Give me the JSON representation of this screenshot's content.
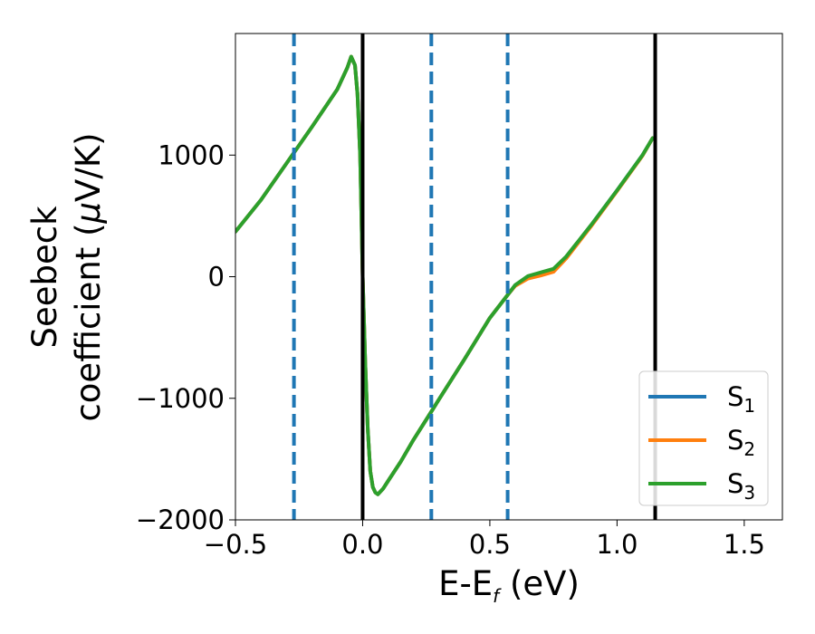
{
  "chart_data": {
    "type": "line",
    "xlabel": "E-E",
    "xlabel_sub": "f",
    "xlabel_unit": " (eV)",
    "ylabel_line1": "Seebeck",
    "ylabel_line2_prefix": "coefficient  (",
    "ylabel_mu": "μ",
    "ylabel_line2_suffix": "V/K)",
    "xlim": [
      -0.5,
      1.65
    ],
    "ylim": [
      -2000,
      2000
    ],
    "xticks": [
      -0.5,
      0.0,
      0.5,
      1.0,
      1.5
    ],
    "xtick_labels": [
      "−0.5",
      "0.0",
      "0.5",
      "1.0",
      "1.5"
    ],
    "yticks": [
      -2000,
      -1000,
      0,
      1000
    ],
    "ytick_labels": [
      "−2000",
      "−1000",
      "0",
      "1000"
    ],
    "grid": false,
    "legend_position": "bottom-right",
    "vlines_solid": [
      0.0,
      1.15
    ],
    "vlines_dashed": [
      -0.27,
      0.27,
      0.57
    ],
    "colors": {
      "S1": "#1f77b4",
      "S2": "#ff7f0e",
      "S3": "#2ca02c",
      "solid_vline": "#000000",
      "dashed_vline": "#1f77b4"
    },
    "x": [
      -0.5,
      -0.4,
      -0.3,
      -0.2,
      -0.1,
      -0.06,
      -0.045,
      -0.03,
      -0.02,
      -0.01,
      0.0,
      0.01,
      0.02,
      0.03,
      0.04,
      0.05,
      0.06,
      0.08,
      0.1,
      0.15,
      0.2,
      0.27,
      0.3,
      0.4,
      0.5,
      0.57,
      0.6,
      0.65,
      0.7,
      0.75,
      0.8,
      0.9,
      1.0,
      1.1,
      1.14
    ],
    "series": [
      {
        "name_base": "S",
        "name_sub": "1",
        "values": [
          370,
          630,
          930,
          1230,
          1540,
          1720,
          1810,
          1740,
          1500,
          1000,
          0,
          -700,
          -1250,
          -1600,
          -1730,
          -1775,
          -1790,
          -1745,
          -1680,
          -1520,
          -1340,
          -1110,
          -1010,
          -680,
          -340,
          -150,
          -70,
          0,
          30,
          60,
          160,
          430,
          710,
          1000,
          1140
        ]
      },
      {
        "name_base": "S",
        "name_sub": "2",
        "values": [
          370,
          630,
          930,
          1230,
          1540,
          1720,
          1810,
          1740,
          1500,
          1000,
          0,
          -700,
          -1250,
          -1600,
          -1730,
          -1775,
          -1790,
          -1745,
          -1680,
          -1520,
          -1340,
          -1110,
          -1010,
          -680,
          -340,
          -150,
          -75,
          -15,
          10,
          40,
          150,
          420,
          705,
          995,
          1140
        ]
      },
      {
        "name_base": "S",
        "name_sub": "3",
        "values": [
          370,
          630,
          930,
          1230,
          1540,
          1720,
          1810,
          1740,
          1500,
          1000,
          0,
          -700,
          -1250,
          -1600,
          -1730,
          -1775,
          -1790,
          -1745,
          -1680,
          -1520,
          -1340,
          -1110,
          -1010,
          -680,
          -340,
          -150,
          -68,
          5,
          35,
          65,
          165,
          430,
          710,
          1000,
          1140
        ]
      }
    ]
  }
}
